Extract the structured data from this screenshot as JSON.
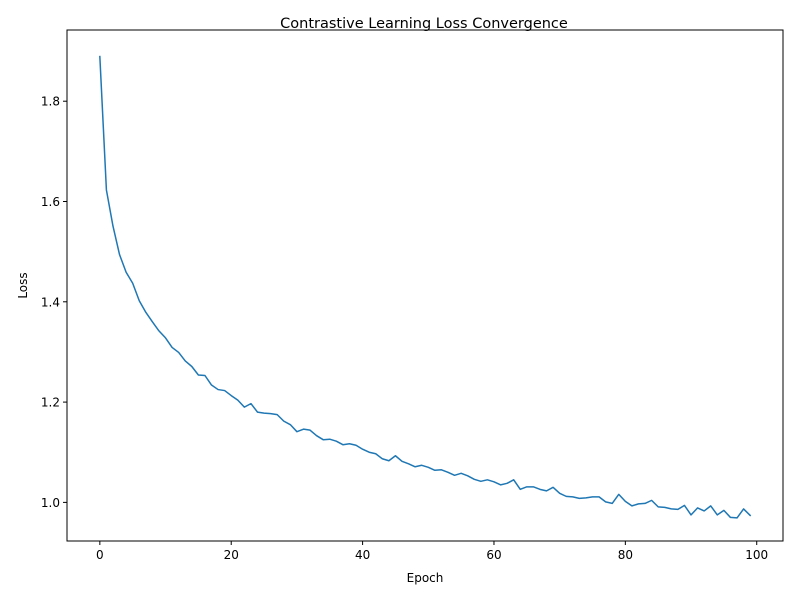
{
  "chart_data": {
    "type": "line",
    "title": "Contrastive Learning Loss Convergence",
    "xlabel": "Epoch",
    "ylabel": "Loss",
    "xlim": [
      -5,
      104
    ],
    "ylim": [
      0.923,
      1.942
    ],
    "xticks": [
      0,
      20,
      40,
      60,
      80,
      100
    ],
    "yticks": [
      1.0,
      1.2,
      1.4,
      1.6,
      1.8
    ],
    "xtick_labels": [
      "0",
      "20",
      "40",
      "60",
      "80",
      "100"
    ],
    "ytick_labels": [
      "1.0",
      "1.2",
      "1.4",
      "1.6",
      "1.8"
    ],
    "grid": false,
    "line_color": "#1f77b4",
    "series": [
      {
        "x": [
          0,
          1,
          2,
          3,
          4,
          5,
          6,
          7,
          8,
          9,
          10,
          11,
          12,
          13,
          14,
          15,
          16,
          17,
          18,
          19,
          20,
          21,
          22,
          23,
          24,
          25,
          26,
          27,
          28,
          29,
          30,
          31,
          32,
          33,
          34,
          35,
          36,
          37,
          38,
          39,
          40,
          41,
          42,
          43,
          44,
          45,
          46,
          47,
          48,
          49,
          50,
          51,
          52,
          53,
          54,
          55,
          56,
          57,
          58,
          59,
          60,
          61,
          62,
          63,
          64,
          65,
          66,
          67,
          68,
          69,
          70,
          71,
          72,
          73,
          74,
          75,
          76,
          77,
          78,
          79,
          80,
          81,
          82,
          83,
          84,
          85,
          86,
          87,
          88,
          89,
          90,
          91,
          92,
          93,
          94,
          95,
          96,
          97,
          98,
          99
        ],
        "values": [
          1.889,
          1.623,
          1.551,
          1.494,
          1.459,
          1.437,
          1.402,
          1.379,
          1.36,
          1.342,
          1.328,
          1.309,
          1.299,
          1.282,
          1.271,
          1.254,
          1.253,
          1.234,
          1.225,
          1.223,
          1.213,
          1.204,
          1.19,
          1.197,
          1.18,
          1.178,
          1.177,
          1.175,
          1.162,
          1.155,
          1.141,
          1.146,
          1.144,
          1.133,
          1.125,
          1.126,
          1.122,
          1.115,
          1.117,
          1.114,
          1.106,
          1.1,
          1.097,
          1.087,
          1.083,
          1.093,
          1.082,
          1.077,
          1.071,
          1.074,
          1.07,
          1.064,
          1.065,
          1.06,
          1.054,
          1.058,
          1.053,
          1.046,
          1.042,
          1.045,
          1.041,
          1.035,
          1.038,
          1.045,
          1.026,
          1.031,
          1.031,
          1.026,
          1.023,
          1.03,
          1.018,
          1.012,
          1.011,
          1.008,
          1.009,
          1.011,
          1.011,
          1.001,
          0.998,
          1.016,
          1.002,
          0.993,
          0.997,
          0.998,
          1.004,
          0.991,
          0.99,
          0.987,
          0.986,
          0.994,
          0.975,
          0.989,
          0.983,
          0.993,
          0.975,
          0.984,
          0.97,
          0.969,
          0.987,
          0.974
        ]
      }
    ]
  }
}
